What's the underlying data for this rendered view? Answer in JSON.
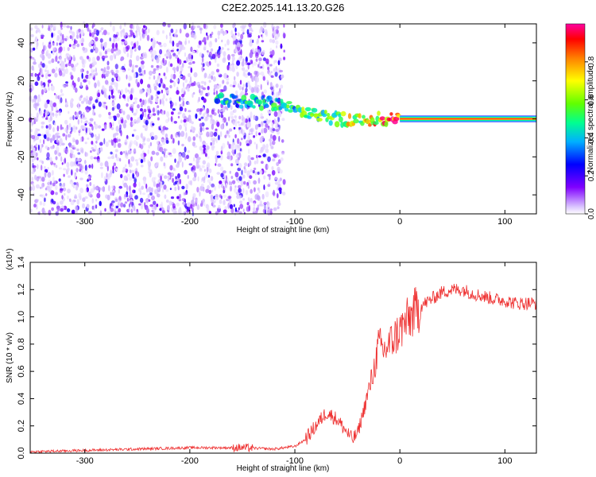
{
  "title": "C2E2.2025.141.13.20.G26",
  "chart_data": [
    {
      "type": "heatmap",
      "title": "C2E2.2025.141.13.20.G26",
      "xlabel": "Height of straight line (km)",
      "ylabel": "Frequency (Hz)",
      "xlim": [
        -352,
        130
      ],
      "ylim": [
        -50,
        50
      ],
      "xticks": [
        -300,
        -200,
        -100,
        0,
        100
      ],
      "yticks": [
        -40,
        -20,
        0,
        20,
        40
      ],
      "colorbar": {
        "label": "Normalized spectral amplitude",
        "ticks": [
          "0.0",
          "0.2",
          "0.4",
          "0.6",
          "0.8"
        ],
        "colors": [
          "#ffffff",
          "#c8a8ff",
          "#7a00ff",
          "#0000ff",
          "#00c8ff",
          "#00ff80",
          "#80ff00",
          "#ffff00",
          "#ff8000",
          "#ff0000",
          "#ff00c0"
        ]
      },
      "ridge": [
        {
          "x": -175,
          "freq": 10,
          "amp": 0.45
        },
        {
          "x": -150,
          "freq": 9,
          "amp": 0.5
        },
        {
          "x": -120,
          "freq": 8,
          "amp": 0.5
        },
        {
          "x": -100,
          "freq": 5,
          "amp": 0.55
        },
        {
          "x": -80,
          "freq": 2,
          "amp": 0.6
        },
        {
          "x": -60,
          "freq": 0,
          "amp": 0.65
        },
        {
          "x": -40,
          "freq": -1,
          "amp": 0.7
        },
        {
          "x": -20,
          "freq": 0,
          "amp": 0.8
        },
        {
          "x": 0,
          "freq": 0,
          "amp": 0.9
        },
        {
          "x": 130,
          "freq": 0,
          "amp": 0.9
        }
      ],
      "noise_region_xmax": -110
    },
    {
      "type": "line",
      "xlabel": "Height of straight line (km)",
      "ylabel": "SNR (10 * v/v)",
      "y_multiplier": "(x10⁴)",
      "xlim": [
        -352,
        130
      ],
      "ylim": [
        0.0,
        1.4
      ],
      "xticks": [
        -300,
        -200,
        -100,
        0,
        100
      ],
      "yticks": [
        "0.0",
        "0.2",
        "0.4",
        "0.6",
        "0.8",
        "1.0",
        "1.2",
        "1.4"
      ],
      "series": [
        {
          "color": "#ee3030",
          "x": [
            -352,
            -300,
            -250,
            -200,
            -150,
            -120,
            -100,
            -90,
            -80,
            -70,
            -60,
            -50,
            -45,
            -40,
            -35,
            -30,
            -25,
            -20,
            -15,
            -10,
            -5,
            0,
            10,
            20,
            30,
            40,
            50,
            60,
            70,
            80,
            90,
            100,
            110,
            120,
            130
          ],
          "y": [
            0.01,
            0.02,
            0.03,
            0.04,
            0.04,
            0.03,
            0.05,
            0.1,
            0.2,
            0.3,
            0.25,
            0.15,
            0.1,
            0.15,
            0.3,
            0.45,
            0.6,
            0.8,
            0.75,
            0.8,
            0.85,
            0.9,
            1.0,
            1.08,
            1.13,
            1.18,
            1.2,
            1.2,
            1.17,
            1.15,
            1.13,
            1.12,
            1.1,
            1.1,
            1.1
          ]
        }
      ]
    }
  ]
}
